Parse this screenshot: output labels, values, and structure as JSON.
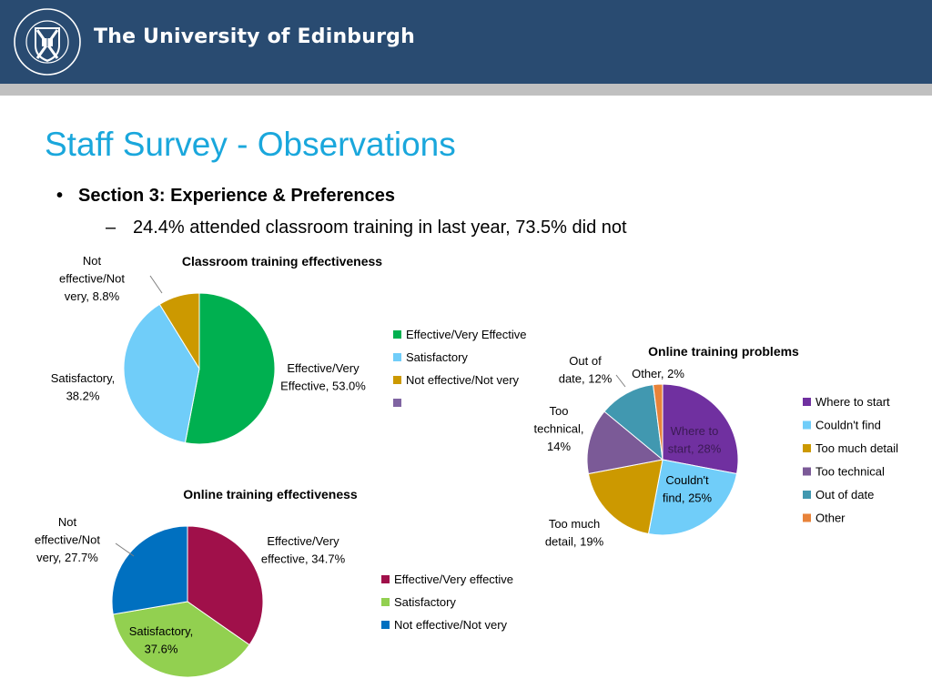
{
  "header": {
    "university_name": "The University of Edinburgh",
    "crest_text": "THE UNIVERSITY OF EDINBURGH"
  },
  "slide": {
    "title": "Staff Survey - Observations",
    "bullet": "Section 3: Experience & Preferences",
    "sub_bullet": "24.4% attended classroom training in last year, 73.5% did not"
  },
  "chart_data": [
    {
      "type": "pie",
      "title": "Classroom training effectiveness",
      "labels": [
        "Effective/Very Effective",
        "Satisfactory",
        "Not effective/Not very",
        ""
      ],
      "values": [
        53.0,
        38.2,
        8.8,
        0
      ],
      "colors": [
        "#00b050",
        "#70cdf9",
        "#cc9900",
        "#8064a2"
      ],
      "data_labels": [
        [
          "Effective/Very",
          "Effective, 53.0%"
        ],
        [
          "Satisfactory,",
          "38.2%"
        ],
        [
          "Not",
          "effective/Not",
          "very, 8.8%"
        ],
        []
      ],
      "legend_position": "right"
    },
    {
      "type": "pie",
      "title": "Online training problems",
      "labels": [
        "Where to start",
        "Couldn't find",
        "Too much detail",
        "Too technical",
        "Out of date",
        "Other"
      ],
      "values": [
        28,
        25,
        19,
        14,
        12,
        2
      ],
      "colors": [
        "#7030a0",
        "#70cdf9",
        "#cc9900",
        "#7b5a97",
        "#4198b0",
        "#e8833a"
      ],
      "data_labels": [
        [
          "Where to",
          "start, 28%"
        ],
        [
          "Couldn't",
          "find, 25%"
        ],
        [
          "Too much",
          "detail, 19%"
        ],
        [
          "Too",
          "technical,",
          "14%"
        ],
        [
          "Out of",
          "date, 12%"
        ],
        [
          "Other, 2%"
        ]
      ],
      "legend_position": "right"
    },
    {
      "type": "pie",
      "title": "Online training effectiveness",
      "labels": [
        "Effective/Very effective",
        "Satisfactory",
        "Not effective/Not very"
      ],
      "values": [
        34.7,
        37.6,
        27.7
      ],
      "colors": [
        "#a0104a",
        "#92d050",
        "#0070c0"
      ],
      "data_labels": [
        [
          "Effective/Very",
          "effective, 34.7%"
        ],
        [
          "Satisfactory,",
          "37.6%"
        ],
        [
          "Not",
          "effective/Not",
          "very, 27.7%"
        ]
      ],
      "legend_position": "right"
    }
  ]
}
